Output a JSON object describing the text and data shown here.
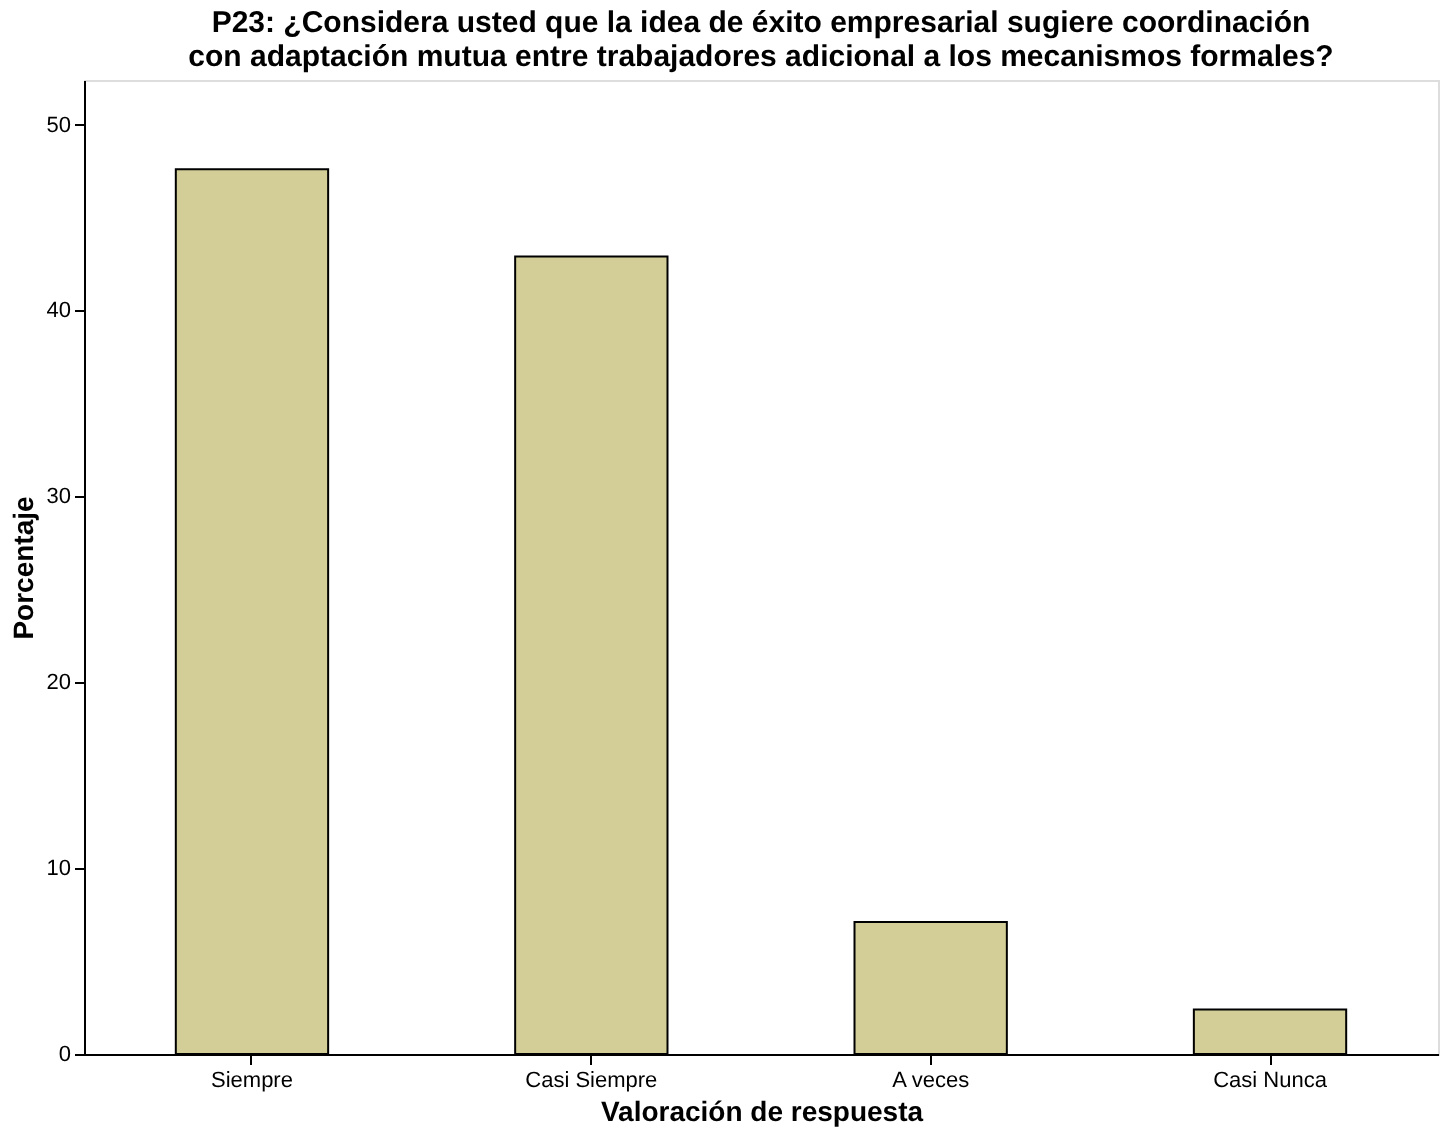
{
  "chart_data": {
    "type": "bar",
    "title": "P23: ¿Considera usted que la idea de éxito empresarial sugiere coordinación\ncon adaptación mutua entre trabajadores adicional a los mecanismos formales?",
    "xlabel": "Valoración de respuesta",
    "ylabel": "Porcentaje",
    "categories": [
      "Siempre",
      "Casi Siempre",
      "A veces",
      "Casi Nunca"
    ],
    "values": [
      47.6,
      42.9,
      7.1,
      2.4
    ],
    "color": "#d3ce97",
    "ylim": [
      0,
      52.4
    ],
    "yticks": [
      0,
      10,
      20,
      30,
      40,
      50
    ],
    "grid": false
  }
}
